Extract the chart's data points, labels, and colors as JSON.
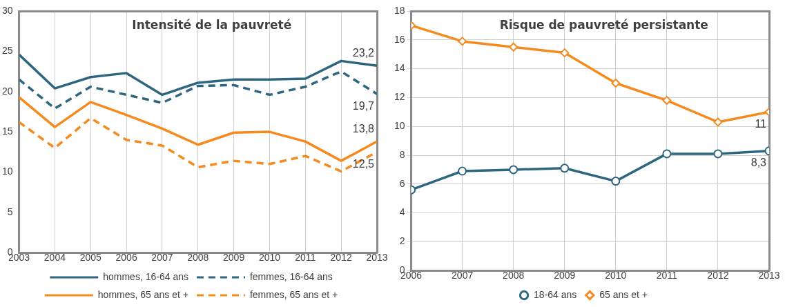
{
  "chart_data": [
    {
      "type": "line",
      "title": "Intensité de la pauvreté",
      "x": [
        2003,
        2004,
        2005,
        2006,
        2007,
        2008,
        2009,
        2010,
        2011,
        2012,
        2013
      ],
      "xlim": [
        2003,
        2013
      ],
      "xticks": [
        2003,
        2004,
        2005,
        2006,
        2007,
        2008,
        2009,
        2010,
        2011,
        2012,
        2013
      ],
      "ylim": [
        0,
        30
      ],
      "yticks": [
        0,
        5,
        10,
        15,
        20,
        25,
        30
      ],
      "grid": "x",
      "legend": "bottom",
      "marker": "none",
      "series": [
        {
          "name": "hommes, 16-64 ans",
          "color": "#2e6680",
          "line_style": "solid",
          "values": [
            24.6,
            20.4,
            21.8,
            22.3,
            19.6,
            21.1,
            21.5,
            21.5,
            21.6,
            23.8,
            23.2
          ],
          "value_labels": [
            null,
            null,
            null,
            null,
            null,
            null,
            null,
            null,
            null,
            null,
            "23,2"
          ]
        },
        {
          "name": "femmes, 16-64 ans",
          "color": "#2e6680",
          "line_style": "dashed",
          "values": [
            21.5,
            17.9,
            20.6,
            19.6,
            18.6,
            20.7,
            20.8,
            19.6,
            20.6,
            22.5,
            19.7
          ],
          "value_labels": [
            null,
            null,
            null,
            null,
            null,
            null,
            null,
            null,
            null,
            null,
            "19,7"
          ]
        },
        {
          "name": "hommes, 65 ans et +",
          "color": "#f58a1f",
          "line_style": "solid",
          "values": [
            19.3,
            15.6,
            18.7,
            17.1,
            15.4,
            13.4,
            14.9,
            15.0,
            13.8,
            11.4,
            13.8
          ],
          "value_labels": [
            null,
            null,
            null,
            null,
            null,
            null,
            null,
            null,
            null,
            null,
            "13,8"
          ]
        },
        {
          "name": "femmes, 65 ans et +",
          "color": "#f58a1f",
          "line_style": "dashed",
          "values": [
            16.2,
            13.0,
            16.7,
            14.0,
            13.3,
            10.6,
            11.4,
            11.0,
            12.0,
            10.1,
            12.5
          ],
          "value_labels": [
            null,
            null,
            null,
            null,
            null,
            null,
            null,
            null,
            null,
            null,
            "12,5"
          ]
        }
      ]
    },
    {
      "type": "line",
      "title": "Risque de pauvreté persistante",
      "x": [
        2006,
        2007,
        2008,
        2009,
        2010,
        2011,
        2012,
        2013
      ],
      "xlim": [
        2006,
        2013
      ],
      "xticks": [
        2006,
        2007,
        2008,
        2009,
        2010,
        2011,
        2012,
        2013
      ],
      "ylim": [
        0,
        18
      ],
      "yticks": [
        0,
        2,
        4,
        6,
        8,
        10,
        12,
        14,
        16,
        18
      ],
      "grid": true,
      "legend": "bottom",
      "line_style": "solid",
      "series": [
        {
          "name": "18-64 ans",
          "color": "#2e6680",
          "marker": "circle",
          "values": [
            5.6,
            6.9,
            7.0,
            7.1,
            6.2,
            8.1,
            8.1,
            8.3
          ],
          "value_labels": [
            null,
            null,
            null,
            null,
            null,
            null,
            null,
            "8,3"
          ]
        },
        {
          "name": "65 ans et +",
          "color": "#f58a1f",
          "marker": "diamond",
          "values": [
            17,
            15.9,
            15.5,
            15.1,
            13.0,
            11.8,
            10.3,
            11
          ],
          "value_labels": [
            null,
            null,
            null,
            null,
            null,
            null,
            null,
            "11"
          ]
        }
      ]
    }
  ]
}
